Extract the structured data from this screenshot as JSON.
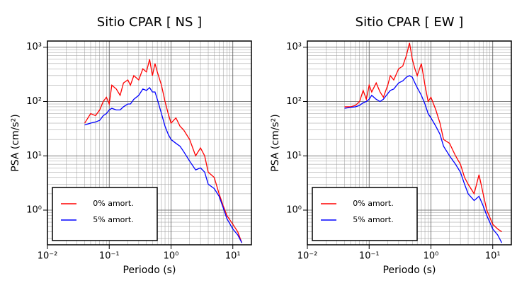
{
  "chart_data": [
    {
      "type": "line",
      "title": "Sitio CPAR [ NS ]",
      "x_label": "Periodo (s)",
      "y_label": "PSA (cm/s²)",
      "log_x": true,
      "log_y": true,
      "grid": true,
      "minor_grid": true,
      "legend": "lower left",
      "xlim": [
        0.01,
        20
      ],
      "ylim": [
        0.23,
        1300
      ],
      "xticks": [
        {
          "value": 0.01,
          "label": "10⁻²"
        },
        {
          "value": 0.1,
          "label": "10⁻¹"
        },
        {
          "value": 1,
          "label": "10⁰"
        },
        {
          "value": 10,
          "label": "10¹"
        }
      ],
      "yticks": [
        {
          "value": 1,
          "label": "10⁰"
        },
        {
          "value": 10,
          "label": "10¹"
        },
        {
          "value": 100,
          "label": "10²"
        },
        {
          "value": 1000,
          "label": "10³"
        }
      ],
      "x": [
        0.04,
        0.05,
        0.06,
        0.07,
        0.08,
        0.09,
        0.1,
        0.11,
        0.13,
        0.15,
        0.17,
        0.2,
        0.22,
        0.25,
        0.3,
        0.35,
        0.4,
        0.45,
        0.5,
        0.55,
        0.6,
        0.7,
        0.8,
        0.9,
        1.0,
        1.2,
        1.4,
        1.6,
        2.0,
        2.5,
        3,
        3.5,
        4,
        5,
        6,
        7,
        8,
        10,
        12,
        14
      ],
      "series": [
        {
          "name": "0% amort.",
          "color": "#ff0000",
          "values": [
            40,
            60,
            55,
            70,
            100,
            120,
            90,
            200,
            170,
            130,
            220,
            250,
            200,
            300,
            250,
            400,
            350,
            600,
            300,
            500,
            350,
            200,
            100,
            60,
            40,
            50,
            35,
            30,
            20,
            10,
            14,
            10,
            5,
            4,
            2,
            1.2,
            0.8,
            0.55,
            0.4,
            0.25
          ]
        },
        {
          "name": "5% amort.",
          "color": "#0000ff",
          "values": [
            37,
            40,
            42,
            45,
            55,
            60,
            70,
            75,
            70,
            70,
            80,
            90,
            90,
            110,
            130,
            170,
            160,
            180,
            150,
            150,
            110,
            60,
            35,
            25,
            20,
            17,
            15,
            12,
            8,
            5.5,
            6,
            5,
            3,
            2.5,
            1.8,
            1.1,
            0.7,
            0.45,
            0.35,
            0.25
          ]
        }
      ]
    },
    {
      "type": "line",
      "title": "Sitio CPAR [ EW ]",
      "x_label": "Periodo (s)",
      "y_label": "PSA (cm/s²)",
      "log_x": true,
      "log_y": true,
      "grid": true,
      "minor_grid": true,
      "legend": "lower left",
      "xlim": [
        0.01,
        20
      ],
      "ylim": [
        0.23,
        1300
      ],
      "xticks": [
        {
          "value": 0.01,
          "label": "10⁻²"
        },
        {
          "value": 0.1,
          "label": "10⁻¹"
        },
        {
          "value": 1,
          "label": "10⁰"
        },
        {
          "value": 10,
          "label": "10¹"
        }
      ],
      "yticks": [
        {
          "value": 1,
          "label": "10⁰"
        },
        {
          "value": 10,
          "label": "10¹"
        },
        {
          "value": 100,
          "label": "10²"
        },
        {
          "value": 1000,
          "label": "10³"
        }
      ],
      "x": [
        0.04,
        0.05,
        0.06,
        0.07,
        0.08,
        0.09,
        0.1,
        0.11,
        0.13,
        0.15,
        0.17,
        0.2,
        0.22,
        0.25,
        0.3,
        0.35,
        0.4,
        0.45,
        0.5,
        0.55,
        0.6,
        0.7,
        0.8,
        0.9,
        1.0,
        1.2,
        1.4,
        1.6,
        2.0,
        2.5,
        3,
        3.5,
        4,
        5,
        6,
        7,
        8,
        10,
        12,
        14
      ],
      "series": [
        {
          "name": "0% amort.",
          "color": "#ff0000",
          "values": [
            80,
            80,
            85,
            100,
            160,
            110,
            200,
            150,
            220,
            150,
            120,
            200,
            300,
            250,
            400,
            450,
            700,
            1200,
            600,
            400,
            300,
            500,
            200,
            100,
            120,
            70,
            40,
            20,
            17,
            10,
            7,
            4,
            3,
            2,
            4.5,
            2,
            1,
            0.55,
            0.45,
            0.4
          ]
        },
        {
          "name": "5% amort.",
          "color": "#0000ff",
          "values": [
            75,
            78,
            80,
            85,
            95,
            100,
            110,
            130,
            110,
            100,
            110,
            140,
            160,
            170,
            220,
            240,
            280,
            300,
            280,
            220,
            180,
            130,
            90,
            60,
            50,
            35,
            25,
            15,
            10,
            7,
            5,
            3,
            2,
            1.5,
            1.8,
            1.2,
            0.8,
            0.45,
            0.35,
            0.25
          ]
        }
      ]
    }
  ]
}
